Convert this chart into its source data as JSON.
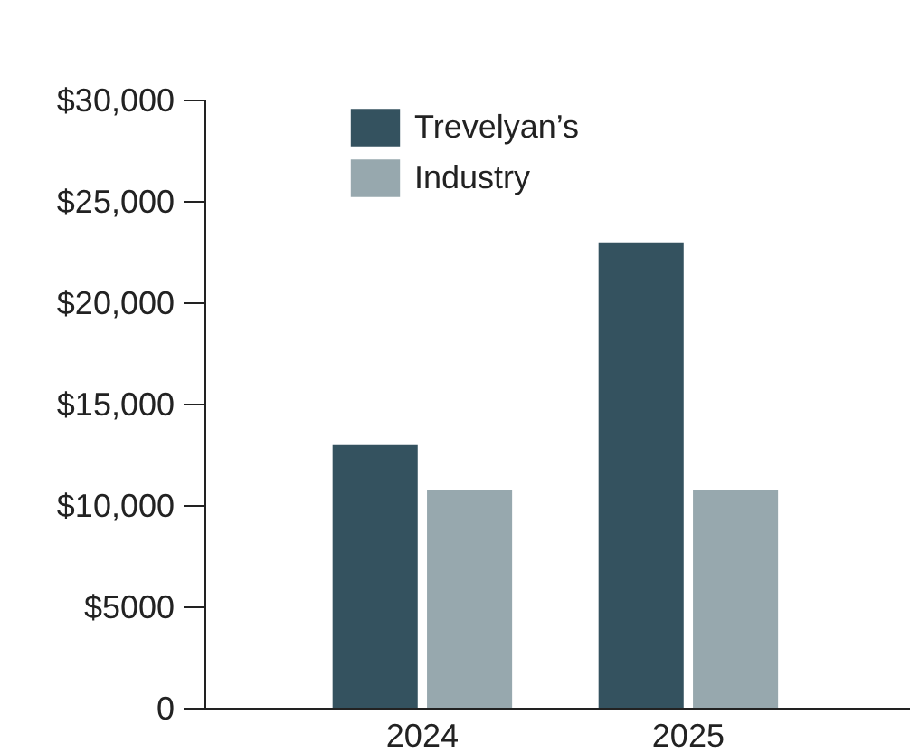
{
  "chart_data": {
    "type": "bar",
    "categories": [
      "2024",
      "2025"
    ],
    "series": [
      {
        "name": "Trevelyan’s",
        "color": "#34525f",
        "values": [
          13000,
          23000
        ]
      },
      {
        "name": "Industry",
        "color": "#97a8ae",
        "values": [
          10800,
          10800
        ]
      }
    ],
    "ylim": [
      0,
      30000
    ],
    "yticks": [
      0,
      {
        "value": 5000,
        "label": "$5000"
      },
      {
        "value": 10000,
        "label": "$10,000"
      },
      {
        "value": 15000,
        "label": "$15,000"
      },
      {
        "value": 20000,
        "label": "$20,000"
      },
      {
        "value": 25000,
        "label": "$25,000"
      },
      {
        "value": 30000,
        "label": "$30,000"
      }
    ],
    "grid": false,
    "legend": "top"
  }
}
